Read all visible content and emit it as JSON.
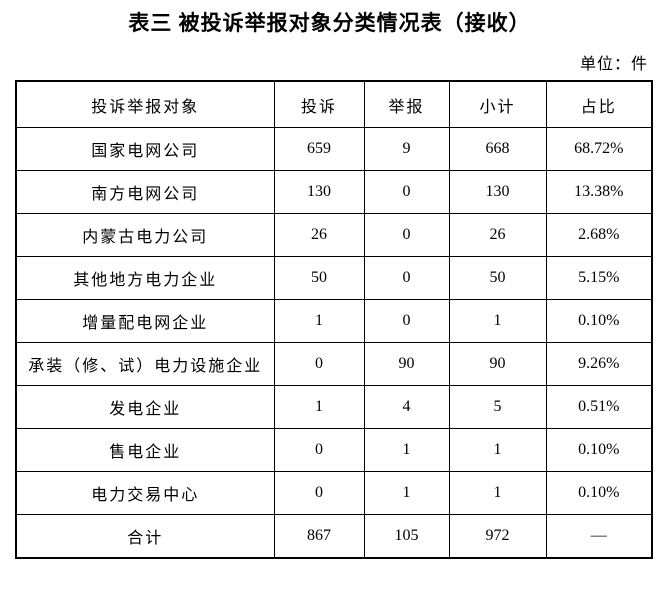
{
  "page": {
    "title": "表三 被投诉举报对象分类情况表（接收）",
    "unit_label": "单位：件"
  },
  "table": {
    "headers": [
      "投诉举报对象",
      "投诉",
      "举报",
      "小计",
      "占比"
    ],
    "rows": [
      [
        "国家电网公司",
        "659",
        "9",
        "668",
        "68.72%"
      ],
      [
        "南方电网公司",
        "130",
        "0",
        "130",
        "13.38%"
      ],
      [
        "内蒙古电力公司",
        "26",
        "0",
        "26",
        "2.68%"
      ],
      [
        "其他地方电力企业",
        "50",
        "0",
        "50",
        "5.15%"
      ],
      [
        "增量配电网企业",
        "1",
        "0",
        "1",
        "0.10%"
      ],
      [
        "承装（修、试）电力设施企业",
        "0",
        "90",
        "90",
        "9.26%"
      ],
      [
        "发电企业",
        "1",
        "4",
        "5",
        "0.51%"
      ],
      [
        "售电企业",
        "0",
        "1",
        "1",
        "0.10%"
      ],
      [
        "电力交易中心",
        "0",
        "1",
        "1",
        "0.10%"
      ],
      [
        "合计",
        "867",
        "105",
        "972",
        "—"
      ]
    ]
  }
}
